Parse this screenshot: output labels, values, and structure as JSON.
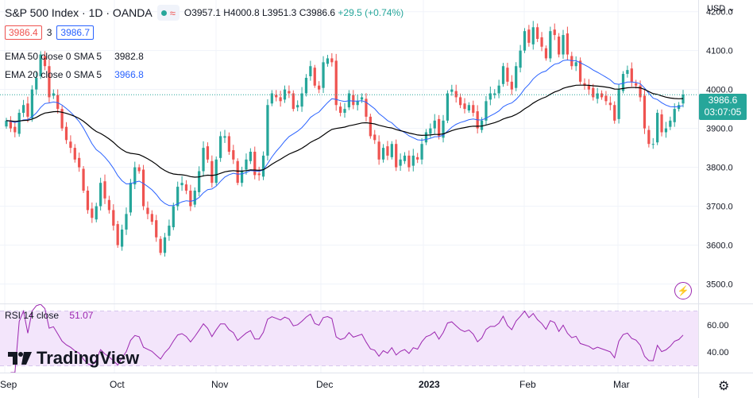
{
  "header": {
    "symbol": "S&P 500 Index · 1D · OANDA",
    "open": "O3957.1",
    "high": "H4000.8",
    "low": "L3951.3",
    "close": "C3986.6",
    "change": "+29.5 (+0.74%)",
    "bid": "3986.4",
    "spread": "3",
    "ask": "3986.7",
    "currency": "USD",
    "last_price": "3986.6",
    "countdown": "03:07:05",
    "ema50_label": "EMA 50 close 0 SMA 5",
    "ema50_value": "3982.8",
    "ema20_label": "EMA 20 close 0 SMA 5",
    "ema20_value": "3966.8",
    "rsi_label": "RSI 14 close",
    "rsi_value": "51.07",
    "brand": "TradingView"
  },
  "colors": {
    "up": "#26a69a",
    "down": "#ef5350",
    "ema20": "#2962ff",
    "ema50": "#000000",
    "rsi": "#9c27b0",
    "rsi_band": "#f3e5fb"
  },
  "chart_data": {
    "type": "candlestick",
    "x_tick_labels": [
      "Sep",
      "Oct",
      "Nov",
      "Dec",
      "2023",
      "Feb",
      "Mar"
    ],
    "y_ticks": [
      3500,
      3600,
      3700,
      3800,
      3900,
      4000,
      4100,
      4200
    ],
    "ylim": [
      3450,
      4230
    ],
    "rsi_ticks": [
      40,
      60
    ],
    "rsi_ylim": [
      25,
      75
    ],
    "closes": [
      3920,
      3900,
      3890,
      3940,
      3960,
      3930,
      4000,
      4030,
      4090,
      4060,
      3980,
      3990,
      3950,
      3900,
      3870,
      3850,
      3820,
      3800,
      3740,
      3690,
      3670,
      3700,
      3760,
      3720,
      3690,
      3650,
      3600,
      3640,
      3680,
      3760,
      3800,
      3790,
      3700,
      3680,
      3660,
      3620,
      3580,
      3620,
      3650,
      3700,
      3750,
      3760,
      3740,
      3700,
      3740,
      3790,
      3850,
      3820,
      3760,
      3820,
      3880,
      3880,
      3840,
      3820,
      3760,
      3790,
      3820,
      3840,
      3780,
      3780,
      3830,
      3960,
      3990,
      3980,
      3970,
      4000,
      3990,
      3950,
      3960,
      3990,
      4030,
      4060,
      4010,
      4000,
      4070,
      4080,
      4070,
      3960,
      3940,
      3950,
      3990,
      3960,
      3970,
      3980,
      3930,
      3880,
      3870,
      3820,
      3850,
      3830,
      3860,
      3800,
      3820,
      3830,
      3800,
      3830,
      3820,
      3860,
      3890,
      3900,
      3920,
      3880,
      3920,
      3990,
      4000,
      3980,
      3960,
      3950,
      3960,
      3940,
      3900,
      3920,
      3970,
      3990,
      3990,
      4010,
      4060,
      4020,
      4000,
      4060,
      4100,
      4150,
      4120,
      4160,
      4130,
      4110,
      4080,
      4150,
      4140,
      4090,
      4140,
      4090,
      4060,
      4070,
      4020,
      4010,
      4000,
      3980,
      3990,
      3980,
      3970,
      3960,
      3920,
      4000,
      4040,
      4050,
      4020,
      4010,
      3980,
      3900,
      3860,
      3860,
      3940,
      3890,
      3900,
      3920,
      3950,
      3960,
      3987
    ]
  }
}
